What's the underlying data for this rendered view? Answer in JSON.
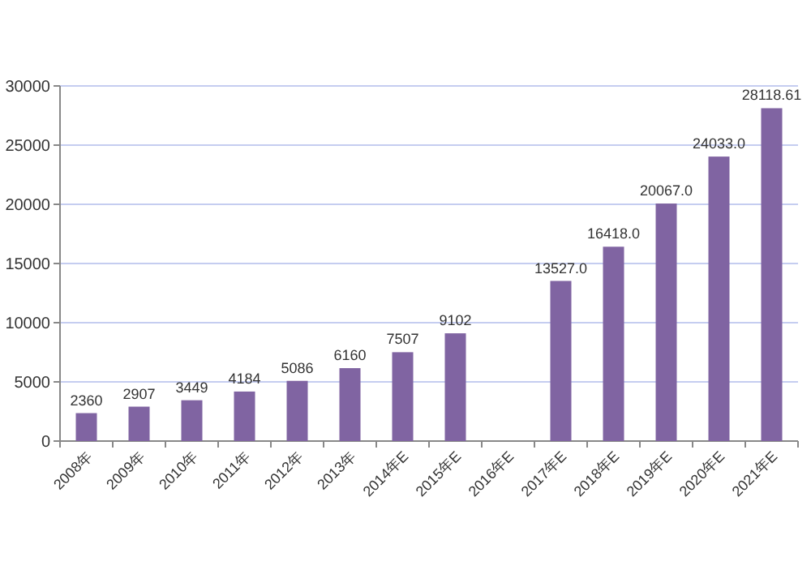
{
  "chart_data": {
    "type": "bar",
    "categories": [
      "2008年",
      "2009年",
      "2010年",
      "2011年",
      "2012年",
      "2013年",
      "2014年E",
      "2015年E",
      "2016年E",
      "2017年E",
      "2018年E",
      "2019年E",
      "2020年E",
      "2021年E"
    ],
    "values": [
      2360,
      2907,
      3449,
      4184,
      5086,
      6160,
      7507,
      9102,
      null,
      13527,
      16418,
      20067,
      24033,
      28118.61
    ],
    "value_labels": [
      "2360",
      "2907",
      "3449",
      "4184",
      "5086",
      "6160",
      "7507",
      "9102",
      null,
      "13527.0",
      "16418.0",
      "20067.0",
      "24033.0",
      "28118.61"
    ],
    "color": "#8064a2",
    "ylim": [
      0,
      30000
    ],
    "yticks": [
      0,
      5000,
      10000,
      15000,
      20000,
      25000,
      30000
    ],
    "grid": "y"
  }
}
